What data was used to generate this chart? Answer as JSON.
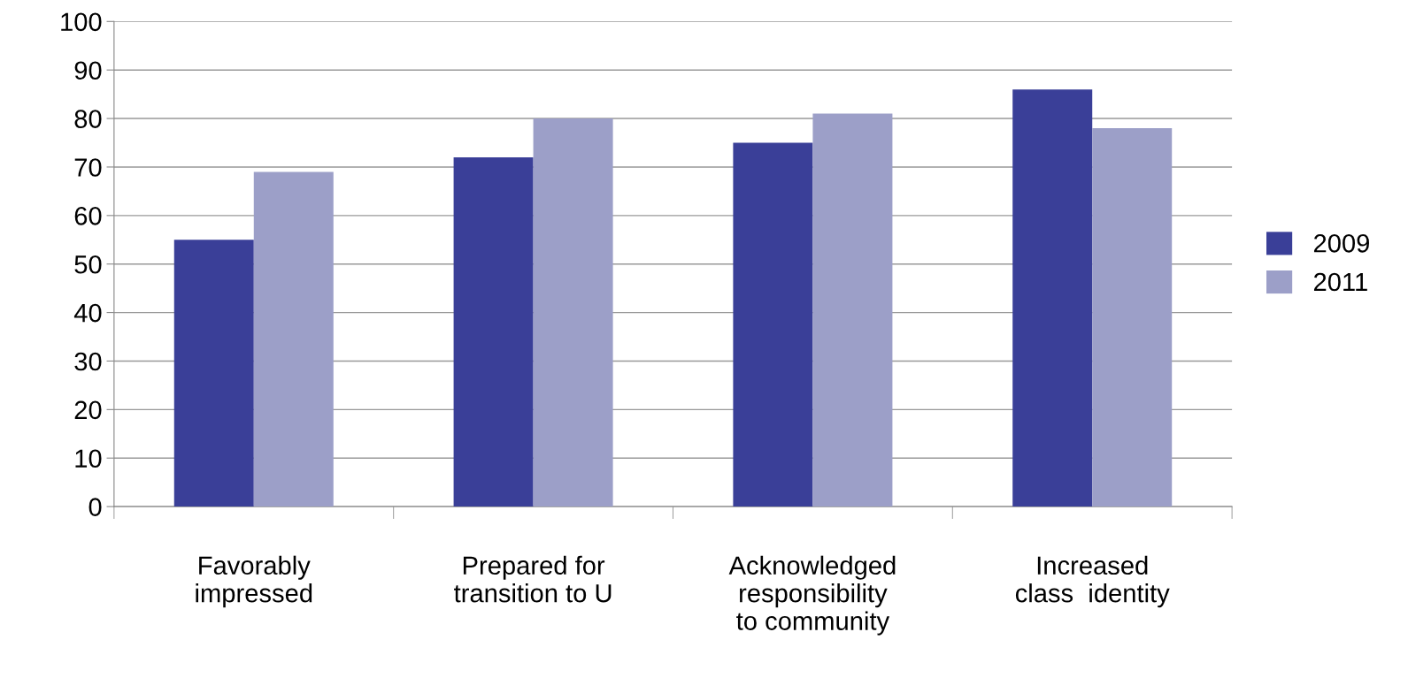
{
  "chart_data": {
    "type": "bar",
    "categories": [
      "Favorably\nimpressed",
      "Prepared for\ntransition to U",
      "Acknowledged\nresponsibility\nto community",
      "Increased\nclass  identity"
    ],
    "series": [
      {
        "name": "2009",
        "color": "#3a3f98",
        "values": [
          55,
          72,
          75,
          86
        ]
      },
      {
        "name": "2011",
        "color": "#9c9fc8",
        "values": [
          69,
          80,
          81,
          78
        ]
      }
    ],
    "ylim": [
      0,
      100
    ],
    "yticks": [
      0,
      10,
      20,
      30,
      40,
      50,
      60,
      70,
      80,
      90,
      100
    ],
    "grid": "y",
    "legend": "right"
  }
}
